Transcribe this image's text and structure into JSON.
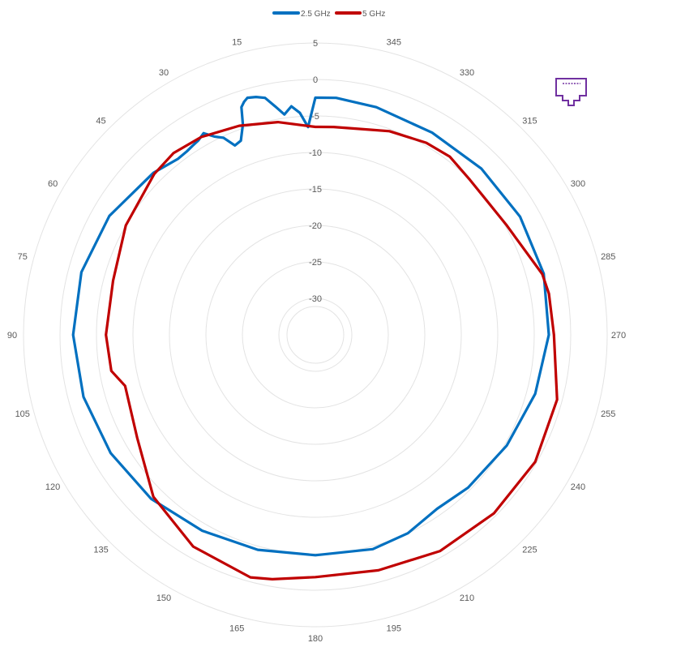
{
  "chart_data": {
    "type": "radar",
    "angle_labels": [
      "345",
      "330",
      "315",
      "300",
      "285",
      "270",
      "255",
      "240",
      "225",
      "210",
      "195",
      "180",
      "165",
      "150",
      "135",
      "120",
      "105",
      "90",
      "75",
      "60",
      "45",
      "30",
      "15"
    ],
    "angle_values": [
      345,
      330,
      315,
      300,
      285,
      270,
      255,
      240,
      225,
      210,
      195,
      180,
      165,
      150,
      135,
      120,
      105,
      90,
      75,
      60,
      45,
      30,
      15
    ],
    "radial_ticks": [
      5,
      0,
      -5,
      -10,
      -15,
      -20,
      -25,
      -30
    ],
    "radial_tick_labels": [
      "5",
      "0",
      "-5",
      "-10",
      "-15",
      "-20",
      "-25",
      "-30"
    ],
    "r_range": [
      -35,
      5
    ],
    "grid": true,
    "legend_position": "top",
    "series": [
      {
        "name": "2.5 GHz",
        "color": "#0070C0",
        "points": [
          [
            0,
            -2.5
          ],
          [
            2,
            -6.5
          ],
          [
            4,
            -4.5
          ],
          [
            6,
            -3.5
          ],
          [
            8,
            -4.5
          ],
          [
            10,
            -3.2
          ],
          [
            12,
            -1.8
          ],
          [
            14,
            -1.4
          ],
          [
            16,
            -1.2
          ],
          [
            17,
            -1.6
          ],
          [
            18,
            -2.2
          ],
          [
            19,
            -4.5
          ],
          [
            21,
            -6.5
          ],
          [
            23,
            -6.8
          ],
          [
            25,
            -5.2
          ],
          [
            27,
            -4.5
          ],
          [
            29,
            -3.4
          ],
          [
            31,
            -3.9
          ],
          [
            33,
            -4.1
          ],
          [
            35,
            -4.3
          ],
          [
            38,
            -4.4
          ],
          [
            45,
            -3.6
          ],
          [
            60,
            -2.4
          ],
          [
            75,
            -1.8
          ],
          [
            90,
            -1.8
          ],
          [
            105,
            -2.1
          ],
          [
            120,
            -2.6
          ],
          [
            135,
            -3.2
          ],
          [
            150,
            -4.0
          ],
          [
            165,
            -4.5
          ],
          [
            180,
            -4.8
          ],
          [
            195,
            -4.6
          ],
          [
            205,
            -5.0
          ],
          [
            215,
            -5.9
          ],
          [
            225,
            -5.4
          ],
          [
            240,
            -4.7
          ],
          [
            255,
            -3.8
          ],
          [
            270,
            -3.0
          ],
          [
            285,
            -2.6
          ],
          [
            300,
            -2.6
          ],
          [
            315,
            -2.8
          ],
          [
            330,
            -3.0
          ],
          [
            345,
            -2.7
          ],
          [
            355,
            -2.4
          ],
          [
            359,
            -2.5
          ]
        ]
      },
      {
        "name": "5 GHz",
        "color": "#C00000",
        "points": [
          [
            0,
            -6.5
          ],
          [
            10,
            -5.4
          ],
          [
            20,
            -4.5
          ],
          [
            30,
            -3.7
          ],
          [
            38,
            -3.4
          ],
          [
            45,
            -3.8
          ],
          [
            60,
            -5.0
          ],
          [
            75,
            -6.3
          ],
          [
            90,
            -6.3
          ],
          [
            100,
            -6.6
          ],
          [
            105,
            -8.0
          ],
          [
            120,
            -6.8
          ],
          [
            135,
            -3.6
          ],
          [
            150,
            -1.5
          ],
          [
            165,
            -0.6
          ],
          [
            170,
            -1.0
          ],
          [
            180,
            -1.8
          ],
          [
            195,
            -1.6
          ],
          [
            210,
            -0.8
          ],
          [
            225,
            -0.4
          ],
          [
            240,
            -0.2
          ],
          [
            255,
            -0.7
          ],
          [
            270,
            -2.3
          ],
          [
            280,
            -2.5
          ],
          [
            285,
            -2.8
          ],
          [
            295,
            -4.4
          ],
          [
            300,
            -4.8
          ],
          [
            315,
            -5.0
          ],
          [
            323,
            -4.4
          ],
          [
            330,
            -4.6
          ],
          [
            340,
            -5.3
          ],
          [
            345,
            -5.9
          ],
          [
            355,
            -6.4
          ],
          [
            359,
            -6.5
          ]
        ]
      }
    ]
  },
  "icon": {
    "name": "ethernet-port-icon",
    "color": "#7030A0"
  }
}
